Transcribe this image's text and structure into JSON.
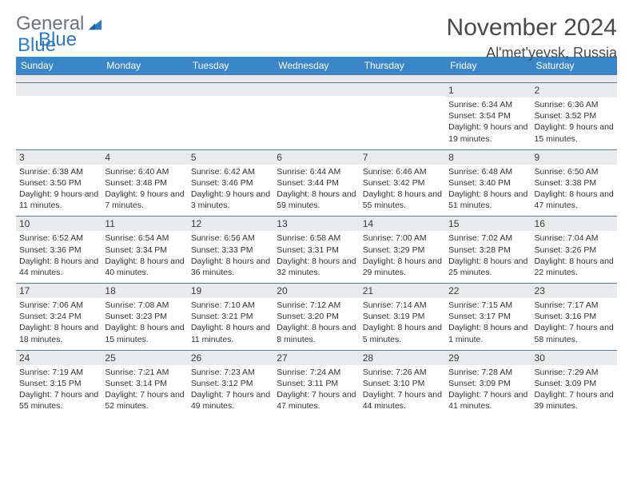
{
  "brand": {
    "word1": "General",
    "word2": "Blue"
  },
  "header": {
    "month_year": "November 2024",
    "location": "Al'met'yevsk, Russia"
  },
  "colors": {
    "header_bg": "#3a86c8",
    "header_text": "#ffffff",
    "daynum_bg": "#e8eaec",
    "row_border": "#5a7a99",
    "text": "#333333",
    "brand_gray": "#6b7280",
    "brand_blue": "#2f7bbf"
  },
  "day_names": [
    "Sunday",
    "Monday",
    "Tuesday",
    "Wednesday",
    "Thursday",
    "Friday",
    "Saturday"
  ],
  "weeks": [
    [
      {
        "n": "",
        "sr": "",
        "ss": "",
        "dl": ""
      },
      {
        "n": "",
        "sr": "",
        "ss": "",
        "dl": ""
      },
      {
        "n": "",
        "sr": "",
        "ss": "",
        "dl": ""
      },
      {
        "n": "",
        "sr": "",
        "ss": "",
        "dl": ""
      },
      {
        "n": "",
        "sr": "",
        "ss": "",
        "dl": ""
      },
      {
        "n": "1",
        "sr": "Sunrise: 6:34 AM",
        "ss": "Sunset: 3:54 PM",
        "dl": "Daylight: 9 hours and 19 minutes."
      },
      {
        "n": "2",
        "sr": "Sunrise: 6:36 AM",
        "ss": "Sunset: 3:52 PM",
        "dl": "Daylight: 9 hours and 15 minutes."
      }
    ],
    [
      {
        "n": "3",
        "sr": "Sunrise: 6:38 AM",
        "ss": "Sunset: 3:50 PM",
        "dl": "Daylight: 9 hours and 11 minutes."
      },
      {
        "n": "4",
        "sr": "Sunrise: 6:40 AM",
        "ss": "Sunset: 3:48 PM",
        "dl": "Daylight: 9 hours and 7 minutes."
      },
      {
        "n": "5",
        "sr": "Sunrise: 6:42 AM",
        "ss": "Sunset: 3:46 PM",
        "dl": "Daylight: 9 hours and 3 minutes."
      },
      {
        "n": "6",
        "sr": "Sunrise: 6:44 AM",
        "ss": "Sunset: 3:44 PM",
        "dl": "Daylight: 8 hours and 59 minutes."
      },
      {
        "n": "7",
        "sr": "Sunrise: 6:46 AM",
        "ss": "Sunset: 3:42 PM",
        "dl": "Daylight: 8 hours and 55 minutes."
      },
      {
        "n": "8",
        "sr": "Sunrise: 6:48 AM",
        "ss": "Sunset: 3:40 PM",
        "dl": "Daylight: 8 hours and 51 minutes."
      },
      {
        "n": "9",
        "sr": "Sunrise: 6:50 AM",
        "ss": "Sunset: 3:38 PM",
        "dl": "Daylight: 8 hours and 47 minutes."
      }
    ],
    [
      {
        "n": "10",
        "sr": "Sunrise: 6:52 AM",
        "ss": "Sunset: 3:36 PM",
        "dl": "Daylight: 8 hours and 44 minutes."
      },
      {
        "n": "11",
        "sr": "Sunrise: 6:54 AM",
        "ss": "Sunset: 3:34 PM",
        "dl": "Daylight: 8 hours and 40 minutes."
      },
      {
        "n": "12",
        "sr": "Sunrise: 6:56 AM",
        "ss": "Sunset: 3:33 PM",
        "dl": "Daylight: 8 hours and 36 minutes."
      },
      {
        "n": "13",
        "sr": "Sunrise: 6:58 AM",
        "ss": "Sunset: 3:31 PM",
        "dl": "Daylight: 8 hours and 32 minutes."
      },
      {
        "n": "14",
        "sr": "Sunrise: 7:00 AM",
        "ss": "Sunset: 3:29 PM",
        "dl": "Daylight: 8 hours and 29 minutes."
      },
      {
        "n": "15",
        "sr": "Sunrise: 7:02 AM",
        "ss": "Sunset: 3:28 PM",
        "dl": "Daylight: 8 hours and 25 minutes."
      },
      {
        "n": "16",
        "sr": "Sunrise: 7:04 AM",
        "ss": "Sunset: 3:26 PM",
        "dl": "Daylight: 8 hours and 22 minutes."
      }
    ],
    [
      {
        "n": "17",
        "sr": "Sunrise: 7:06 AM",
        "ss": "Sunset: 3:24 PM",
        "dl": "Daylight: 8 hours and 18 minutes."
      },
      {
        "n": "18",
        "sr": "Sunrise: 7:08 AM",
        "ss": "Sunset: 3:23 PM",
        "dl": "Daylight: 8 hours and 15 minutes."
      },
      {
        "n": "19",
        "sr": "Sunrise: 7:10 AM",
        "ss": "Sunset: 3:21 PM",
        "dl": "Daylight: 8 hours and 11 minutes."
      },
      {
        "n": "20",
        "sr": "Sunrise: 7:12 AM",
        "ss": "Sunset: 3:20 PM",
        "dl": "Daylight: 8 hours and 8 minutes."
      },
      {
        "n": "21",
        "sr": "Sunrise: 7:14 AM",
        "ss": "Sunset: 3:19 PM",
        "dl": "Daylight: 8 hours and 5 minutes."
      },
      {
        "n": "22",
        "sr": "Sunrise: 7:15 AM",
        "ss": "Sunset: 3:17 PM",
        "dl": "Daylight: 8 hours and 1 minute."
      },
      {
        "n": "23",
        "sr": "Sunrise: 7:17 AM",
        "ss": "Sunset: 3:16 PM",
        "dl": "Daylight: 7 hours and 58 minutes."
      }
    ],
    [
      {
        "n": "24",
        "sr": "Sunrise: 7:19 AM",
        "ss": "Sunset: 3:15 PM",
        "dl": "Daylight: 7 hours and 55 minutes."
      },
      {
        "n": "25",
        "sr": "Sunrise: 7:21 AM",
        "ss": "Sunset: 3:14 PM",
        "dl": "Daylight: 7 hours and 52 minutes."
      },
      {
        "n": "26",
        "sr": "Sunrise: 7:23 AM",
        "ss": "Sunset: 3:12 PM",
        "dl": "Daylight: 7 hours and 49 minutes."
      },
      {
        "n": "27",
        "sr": "Sunrise: 7:24 AM",
        "ss": "Sunset: 3:11 PM",
        "dl": "Daylight: 7 hours and 47 minutes."
      },
      {
        "n": "28",
        "sr": "Sunrise: 7:26 AM",
        "ss": "Sunset: 3:10 PM",
        "dl": "Daylight: 7 hours and 44 minutes."
      },
      {
        "n": "29",
        "sr": "Sunrise: 7:28 AM",
        "ss": "Sunset: 3:09 PM",
        "dl": "Daylight: 7 hours and 41 minutes."
      },
      {
        "n": "30",
        "sr": "Sunrise: 7:29 AM",
        "ss": "Sunset: 3:09 PM",
        "dl": "Daylight: 7 hours and 39 minutes."
      }
    ]
  ]
}
